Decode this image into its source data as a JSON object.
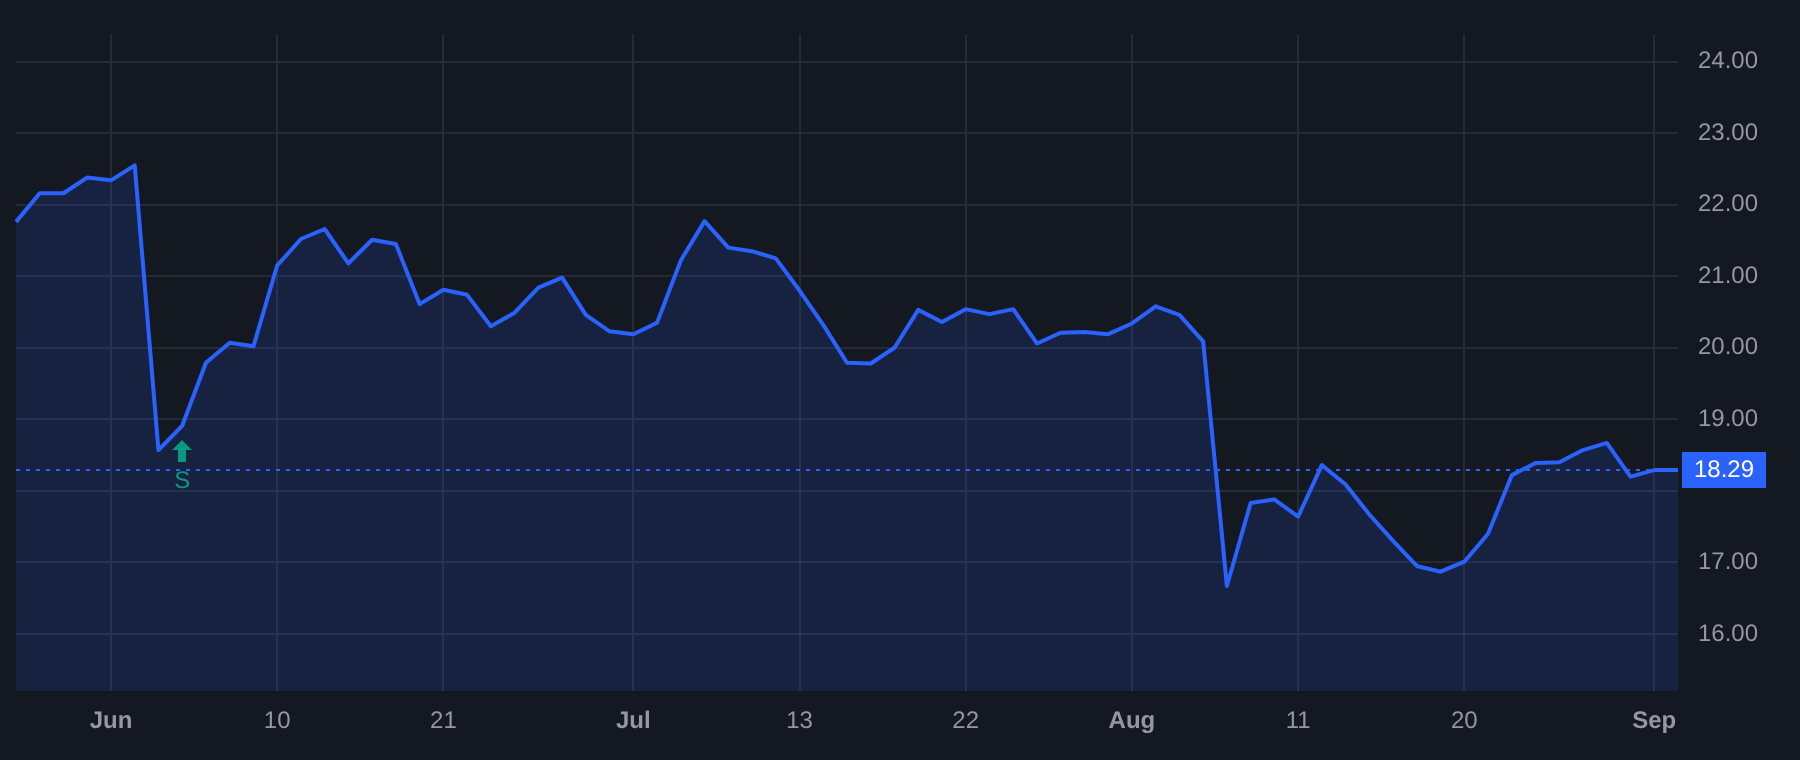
{
  "chart_data": {
    "type": "area",
    "categories": [
      null,
      null,
      null,
      null,
      "Jun",
      null,
      null,
      null,
      null,
      null,
      null,
      "10",
      null,
      null,
      null,
      null,
      null,
      null,
      "21",
      null,
      null,
      null,
      null,
      null,
      null,
      null,
      "Jul",
      null,
      null,
      null,
      null,
      null,
      null,
      "13",
      null,
      null,
      null,
      null,
      null,
      null,
      "22",
      null,
      null,
      null,
      null,
      null,
      null,
      "Aug",
      null,
      null,
      null,
      null,
      null,
      null,
      "11",
      null,
      null,
      null,
      null,
      null,
      null,
      "20",
      null,
      null,
      null,
      null,
      null,
      null,
      null,
      "Sep",
      null
    ],
    "series": [
      {
        "color": "#2962ff",
        "values": [
          21.76,
          22.16,
          22.16,
          22.38,
          22.34,
          22.55,
          18.57,
          18.91,
          19.79,
          20.07,
          20.02,
          21.15,
          21.52,
          21.66,
          21.18,
          21.51,
          21.45,
          20.61,
          20.81,
          20.74,
          20.3,
          20.49,
          20.84,
          20.98,
          20.46,
          20.23,
          20.19,
          20.35,
          21.22,
          21.77,
          21.4,
          21.35,
          21.25,
          20.8,
          20.32,
          19.79,
          19.78,
          20.0,
          20.53,
          20.36,
          20.54,
          20.47,
          20.54,
          20.06,
          20.21,
          20.22,
          20.19,
          20.34,
          20.58,
          20.46,
          20.09,
          16.67,
          17.83,
          17.88,
          17.64,
          18.36,
          18.09,
          17.67,
          17.3,
          16.95,
          16.87,
          17.01,
          17.4,
          18.22,
          18.39,
          18.4,
          18.57,
          18.67,
          18.2,
          18.29,
          18.29
        ]
      }
    ],
    "ylim": [
      15.2,
      24.38
    ],
    "yticks": [
      {
        "value": 16,
        "label": "16.00"
      },
      {
        "value": 17,
        "label": "17.00"
      },
      {
        "value": 18,
        "label": null
      },
      {
        "value": 19,
        "label": "19.00"
      },
      {
        "value": 20,
        "label": "20.00"
      },
      {
        "value": 21,
        "label": "21.00"
      },
      {
        "value": 22,
        "label": "22.00"
      },
      {
        "value": 23,
        "label": "23.00"
      },
      {
        "value": 24,
        "label": "24.00"
      }
    ],
    "ref_lines": [
      {
        "axis": "y",
        "value": 18.29,
        "label": "18.29",
        "color": "#2962ff",
        "line_style": "dotted"
      }
    ],
    "annotations": [
      "S"
    ],
    "grid": true,
    "legend": false,
    "marker": "none",
    "line_style": "solid"
  }
}
